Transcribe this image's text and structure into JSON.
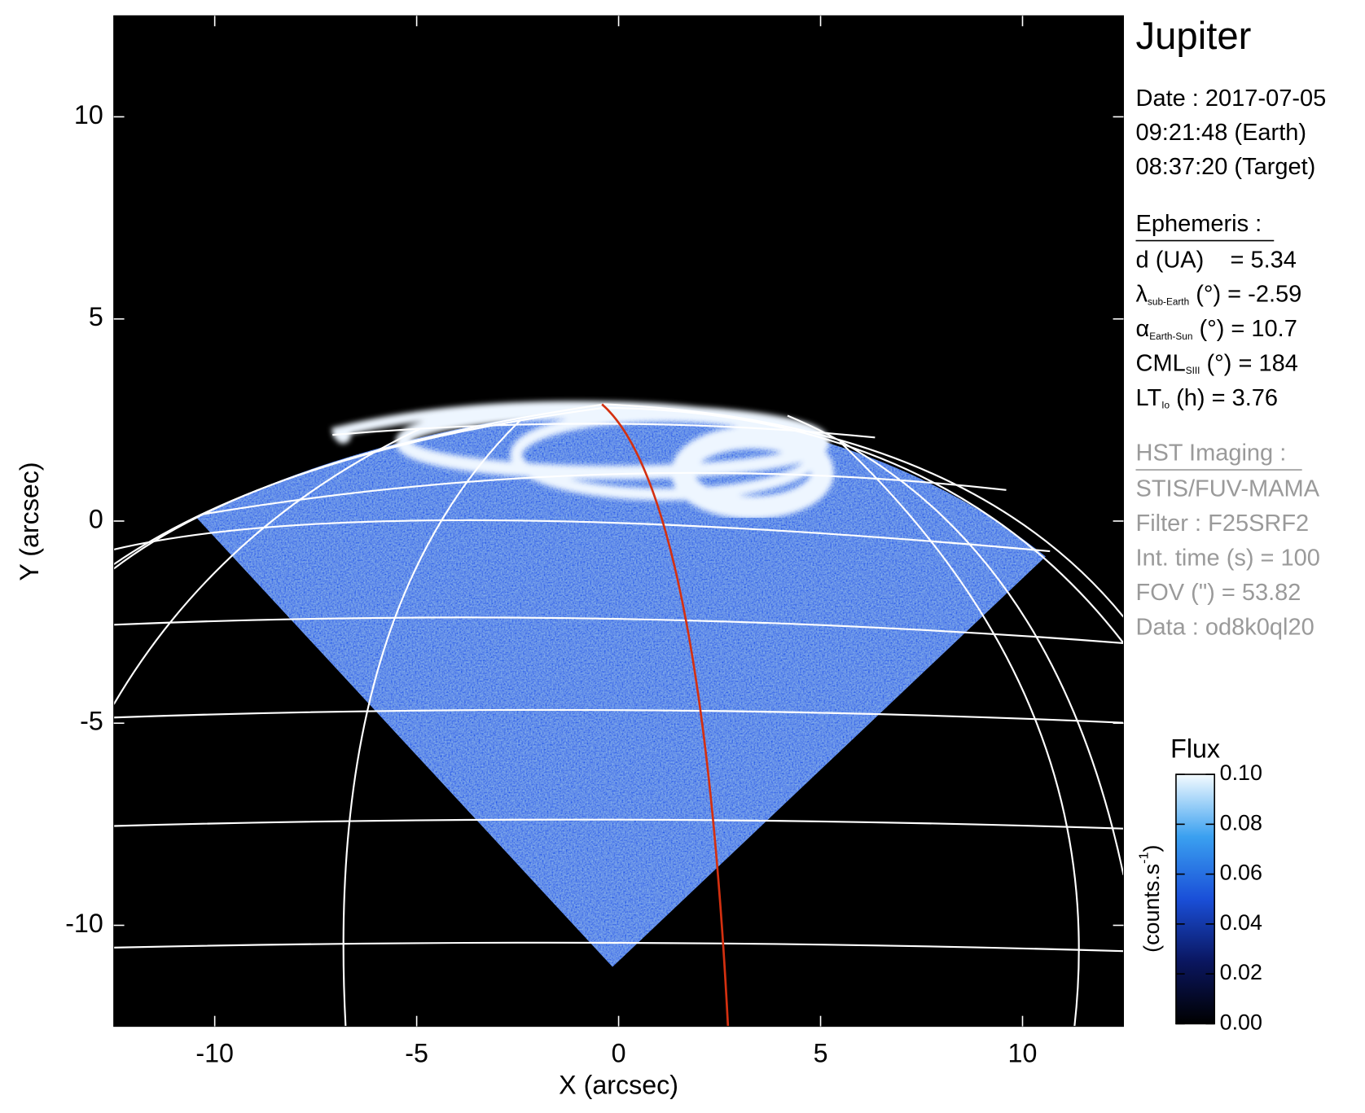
{
  "chart_data": {
    "type": "image",
    "title": "Jupiter",
    "xlabel": "X (arcsec)",
    "ylabel": "Y (arcsec)",
    "xlim": [
      -12.5,
      12.5
    ],
    "ylim": [
      -12.5,
      12.5
    ],
    "xticks": [
      -10,
      -5,
      0,
      5,
      10
    ],
    "yticks": [
      -10,
      -5,
      0,
      5,
      10
    ],
    "date": [
      "Date : 2017-07-05",
      "09:21:48 (Earth)",
      "08:37:20 (Target)"
    ],
    "ephemeris": {
      "title": "Ephemeris :",
      "lines": [
        {
          "text": "d (UA)    = 5.34"
        },
        {
          "symbol": "λ",
          "sub": "sub-Earth",
          "text": " (°) = -2.59"
        },
        {
          "symbol": "α",
          "sub": "Earth-Sun",
          "text": " (°) = 10.7"
        },
        {
          "symbol": "CML",
          "sub": "SIII",
          "text": " (°) = 184"
        },
        {
          "symbol": "LT",
          "sub": "Io",
          "text": " (h) = 3.76"
        }
      ]
    },
    "imaging": {
      "title": "HST Imaging :",
      "lines": [
        "STIS/FUV-MAMA",
        "Filter : F25SRF2",
        "Int. time (s) = 100",
        "FOV (\") = 53.82",
        "Data : od8k0ql20"
      ]
    },
    "colorbar": {
      "title": "Flux",
      "label": {
        "text": "(counts.s",
        "sup": "-1",
        "end": ")"
      },
      "lim": [
        0,
        0.1
      ],
      "ticks": [
        {
          "value": 0,
          "label": "0.00"
        },
        {
          "value": 0.02,
          "label": "0.02"
        },
        {
          "value": 0.04,
          "label": "0.04"
        },
        {
          "value": 0.06,
          "label": "0.06"
        },
        {
          "value": 0.08,
          "label": "0.08"
        },
        {
          "value": 0.1,
          "label": "0.10"
        }
      ]
    }
  }
}
